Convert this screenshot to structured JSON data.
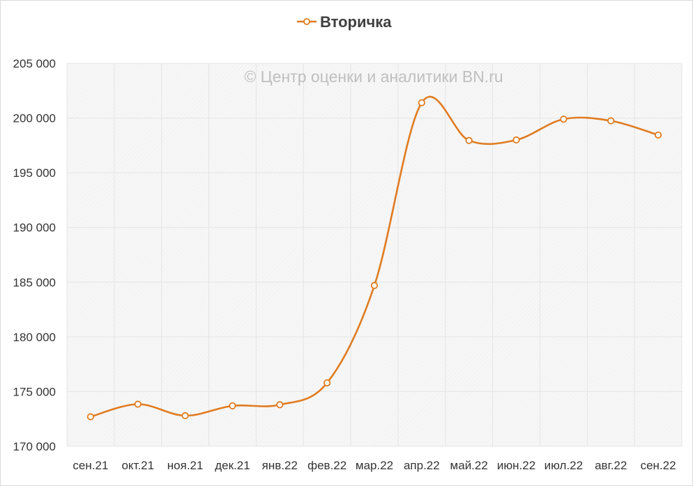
{
  "chart_data": {
    "type": "line",
    "title": "",
    "xlabel": "",
    "ylabel": "",
    "categories": [
      "сен.21",
      "окт.21",
      "ноя.21",
      "дек.21",
      "янв.22",
      "фев.22",
      "мар.22",
      "апр.22",
      "май.22",
      "июн.22",
      "июл.22",
      "авг.22",
      "сен.22"
    ],
    "series": [
      {
        "name": "Вторичка",
        "color": "#e07b20",
        "marker": "circle-open",
        "smooth": true,
        "values": [
          172700,
          173850,
          172800,
          173700,
          173800,
          175800,
          184700,
          201400,
          197950,
          198000,
          199900,
          199750,
          198450
        ]
      }
    ],
    "ylim": [
      170000,
      205000
    ],
    "yticks": [
      170000,
      175000,
      180000,
      185000,
      190000,
      195000,
      200000,
      205000
    ],
    "ytick_labels": [
      "170 000",
      "175 000",
      "180 000",
      "185 000",
      "190 000",
      "195 000",
      "200 000",
      "205 000"
    ],
    "grid": true,
    "legend_position": "top-center",
    "watermark": "© Центр оценки и аналитики BN.ru"
  }
}
